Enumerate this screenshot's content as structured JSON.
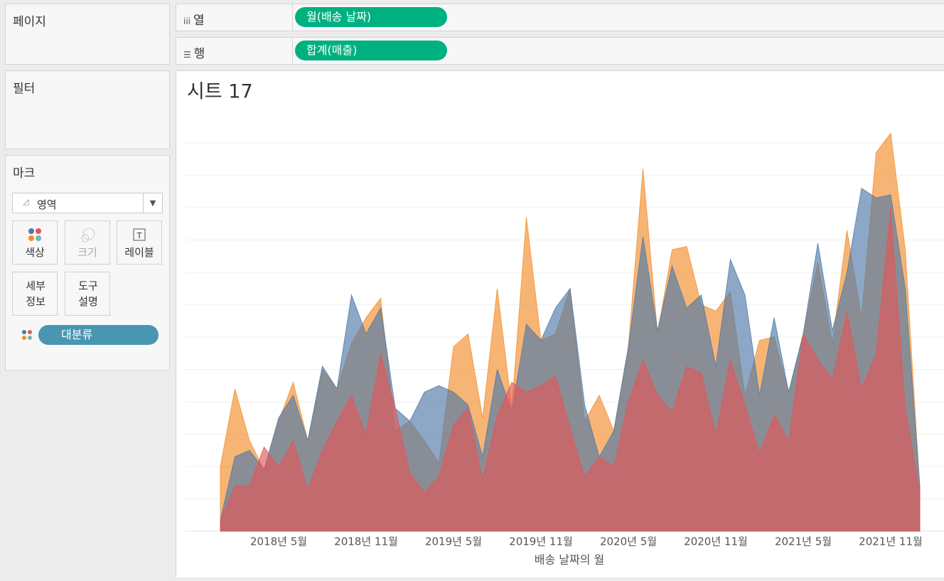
{
  "ui": {
    "pages": "페이지",
    "filters": "필터",
    "marks": "마크",
    "mark_type": "영역",
    "cards": [
      "색상",
      "크기",
      "레이블",
      "세부 정보",
      "도구 설명"
    ],
    "color_field": "대분류",
    "columns_label": "열",
    "columns_pill": "월(배송 날짜)",
    "rows_label": "행",
    "rows_pill": "합계(매출)"
  },
  "chart_data": {
    "type": "area",
    "title": "시트 17",
    "x_label": "배송 날짜의 월",
    "categories": [
      null,
      null,
      null,
      null,
      "2018년 5월",
      null,
      null,
      null,
      null,
      null,
      "2018년 11월",
      null,
      null,
      null,
      null,
      null,
      "2019년 5월",
      null,
      null,
      null,
      null,
      null,
      "2019년 11월",
      null,
      null,
      null,
      null,
      null,
      "2020년 5월",
      null,
      null,
      null,
      null,
      null,
      "2020년 11월",
      null,
      null,
      null,
      null,
      null,
      "2021년 5월",
      null,
      null,
      null,
      null,
      null,
      "2021년 11월",
      null,
      null
    ],
    "series": [
      {
        "color": "#f28e2b",
        "values": [
          2.0,
          4.4,
          2.8,
          1.9,
          3.4,
          4.6,
          2.8,
          5.0,
          4.4,
          5.8,
          6.6,
          7.2,
          3.1,
          3.4,
          2.8,
          2.1,
          5.7,
          6.1,
          3.5,
          7.5,
          3.8,
          9.7,
          5.9,
          6.1,
          7.5,
          3.4,
          4.2,
          3.1,
          5.7,
          11.2,
          6.1,
          8.7,
          8.8,
          7.0,
          6.8,
          7.4,
          4.2,
          5.9,
          6.0,
          4.3,
          6.1,
          8.3,
          5.8,
          9.3,
          6.6,
          11.7,
          12.3,
          8.7,
          1.3
        ]
      },
      {
        "color": "#4e79a7",
        "values": [
          0.35,
          2.3,
          2.5,
          1.9,
          3.5,
          4.2,
          2.8,
          5.1,
          4.4,
          7.3,
          6.1,
          6.9,
          3.8,
          3.4,
          4.3,
          4.5,
          4.3,
          3.9,
          2.3,
          5.0,
          3.7,
          6.4,
          5.9,
          6.9,
          7.5,
          3.9,
          2.3,
          3.1,
          5.7,
          9.1,
          6.2,
          8.2,
          6.9,
          7.3,
          5.1,
          8.4,
          7.3,
          4.2,
          6.6,
          4.3,
          6.1,
          8.9,
          6.2,
          8.0,
          10.6,
          10.3,
          10.4,
          7.5,
          1.4
        ]
      },
      {
        "color": "#e15759",
        "values": [
          0.35,
          1.4,
          1.4,
          2.6,
          2.0,
          2.8,
          1.3,
          2.5,
          3.4,
          4.2,
          3.0,
          5.5,
          3.8,
          1.8,
          1.2,
          1.7,
          3.3,
          3.8,
          1.6,
          3.6,
          4.6,
          4.3,
          4.5,
          4.8,
          3.2,
          1.7,
          2.3,
          2.0,
          4.0,
          5.3,
          4.2,
          3.7,
          5.1,
          4.9,
          3.0,
          5.3,
          3.9,
          2.4,
          3.6,
          2.8,
          6.1,
          5.3,
          4.7,
          6.8,
          4.4,
          5.5,
          10.0,
          3.8,
          1.2
        ]
      }
    ],
    "ylim": [
      0,
      13
    ],
    "yticks": [
      1,
      2,
      3,
      4,
      5,
      6,
      7,
      8,
      9,
      10,
      11,
      12
    ],
    "grid": true
  }
}
